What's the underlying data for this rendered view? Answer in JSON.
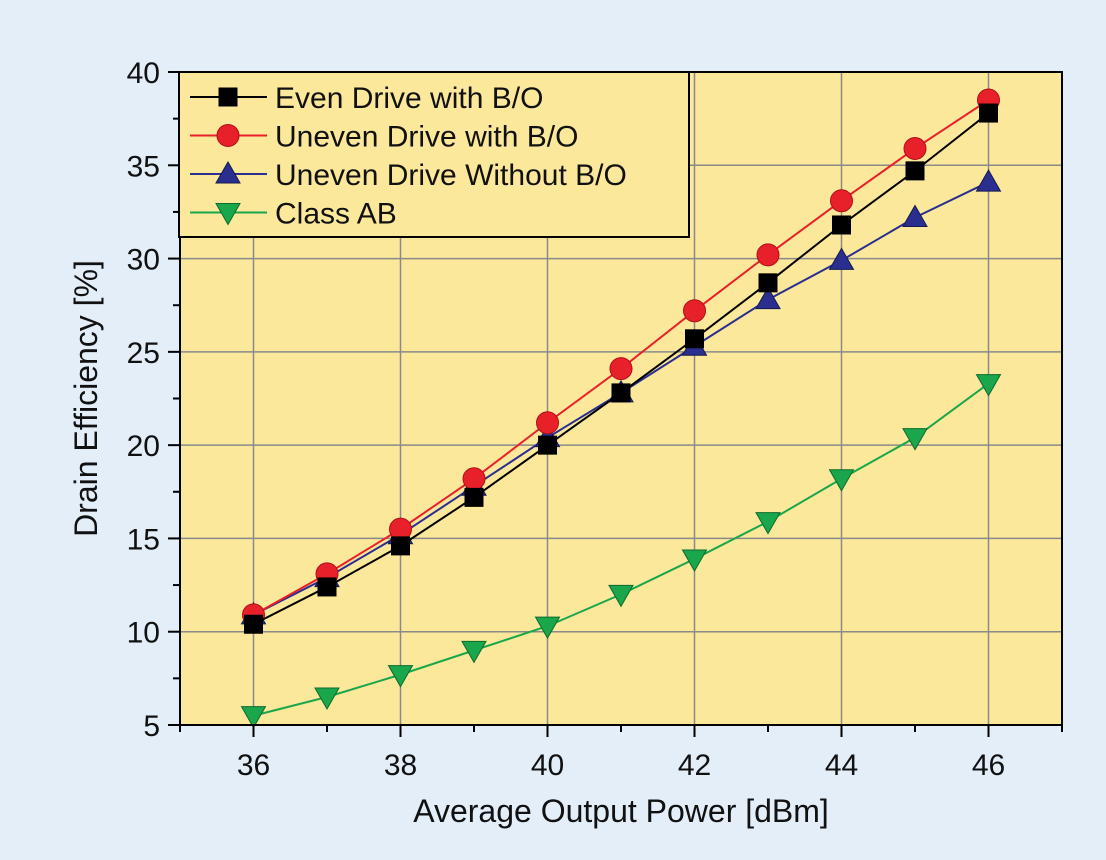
{
  "colors": {
    "page_background": "#e3eef9",
    "plot_background": "#fbe89a",
    "grid": "#8a8a8a"
  },
  "chart_data": {
    "type": "line",
    "title": "",
    "xlabel": "Average Output Power [dBm]",
    "ylabel": "Drain Efficiency [%]",
    "xlim": [
      35,
      47
    ],
    "ylim": [
      5,
      40
    ],
    "xticks": [
      36,
      38,
      40,
      42,
      44,
      46
    ],
    "yticks": [
      5,
      10,
      15,
      20,
      25,
      30,
      35,
      40
    ],
    "grid": true,
    "legend_position": "top-left",
    "x": [
      36,
      37,
      38,
      39,
      40,
      41,
      42,
      43,
      44,
      45,
      46
    ],
    "series": [
      {
        "name": "Even Drive with B/O",
        "color": "#000000",
        "marker": "square",
        "values": [
          10.4,
          12.4,
          14.6,
          17.2,
          20.0,
          22.8,
          25.7,
          28.7,
          31.8,
          34.7,
          37.8
        ]
      },
      {
        "name": "Uneven Drive with B/O",
        "color": "#e8202a",
        "marker": "circle",
        "values": [
          10.9,
          13.1,
          15.5,
          18.2,
          21.2,
          24.1,
          27.2,
          30.2,
          33.1,
          35.9,
          38.5
        ]
      },
      {
        "name": "Uneven Drive Without B/O",
        "color": "#2a2f8f",
        "marker": "triangle-up",
        "values": [
          10.9,
          12.9,
          15.2,
          17.8,
          20.4,
          22.8,
          25.3,
          27.8,
          29.9,
          32.2,
          34.1
        ]
      },
      {
        "name": "Class AB",
        "color": "#1aa64a",
        "marker": "triangle-down",
        "values": [
          5.5,
          6.5,
          7.7,
          9.0,
          10.3,
          12.0,
          13.9,
          15.9,
          18.2,
          20.4,
          23.3
        ]
      }
    ]
  }
}
